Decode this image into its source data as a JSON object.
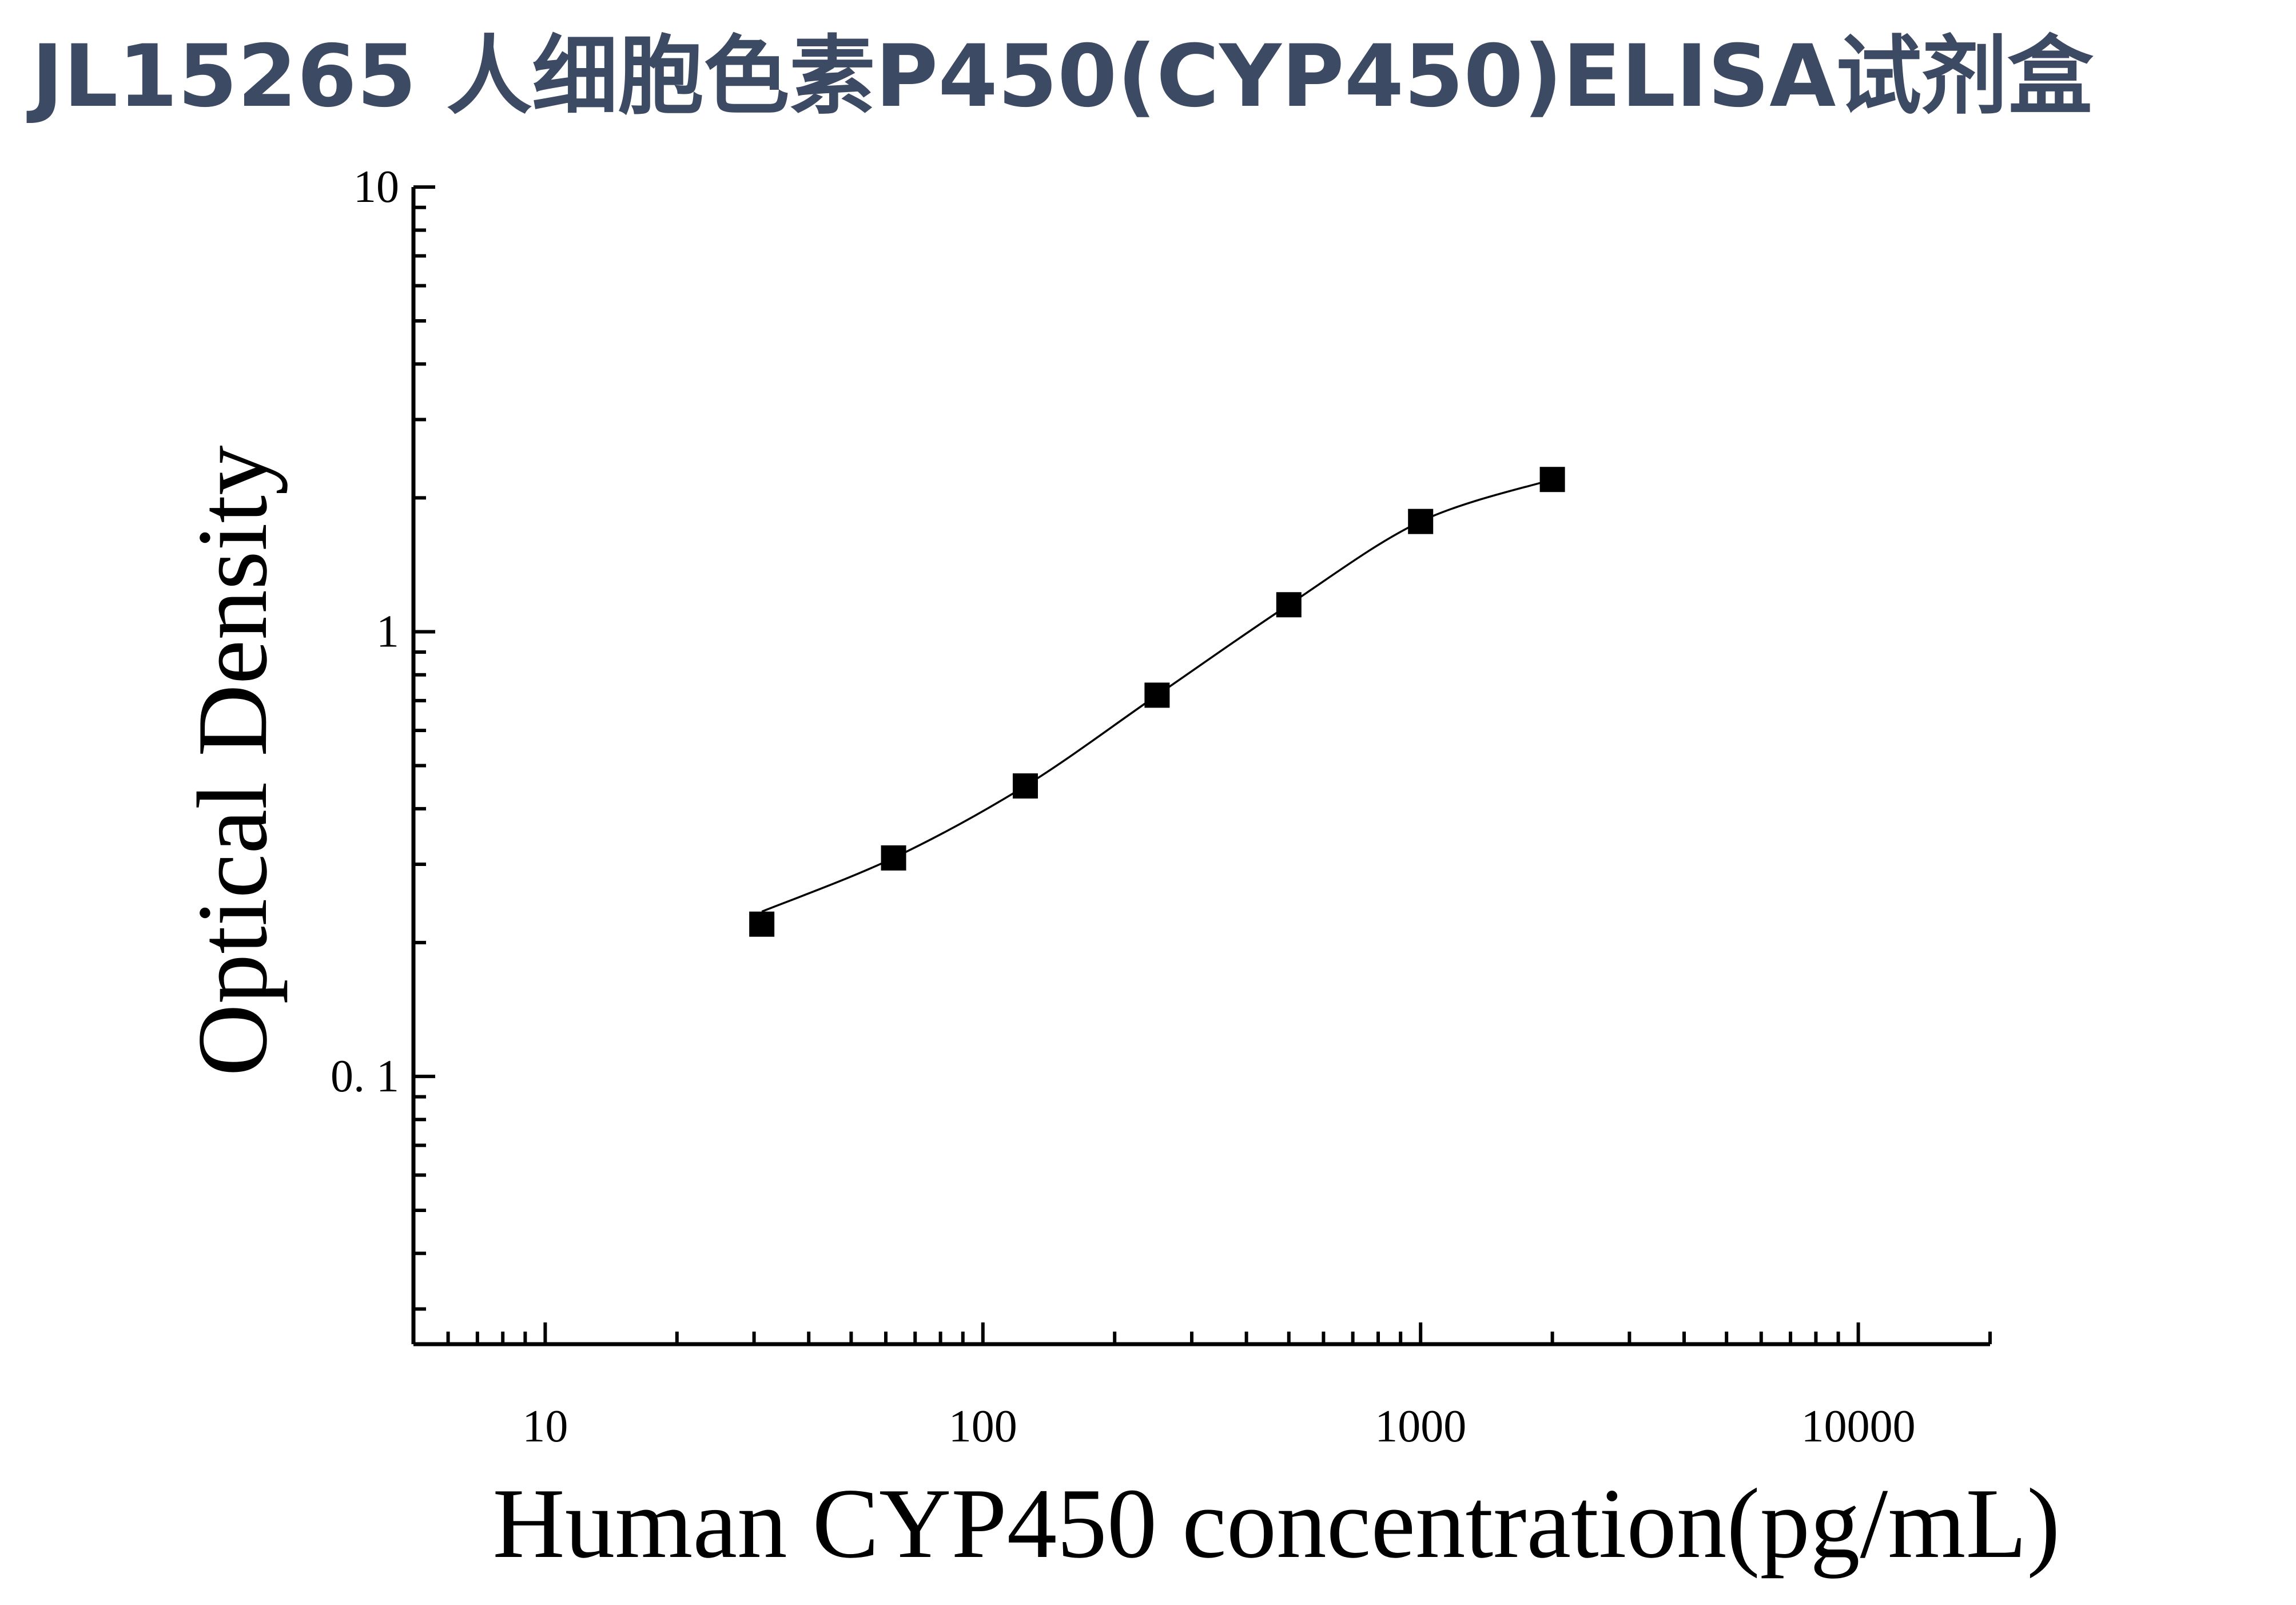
{
  "header": {
    "title": "JL15265 人细胞色素P450(CYP450)ELISA试剂盒"
  },
  "colors": {
    "title": "#3d4a63",
    "axis": "#000000",
    "marker": "#000000",
    "curve": "#000000"
  },
  "chart_data": {
    "type": "scatter",
    "xlabel": "Human CYP450 concentration(pg/mL)",
    "ylabel": "Optical Density",
    "x_scale": "log",
    "y_scale": "log",
    "xlim": [
      5,
      20000
    ],
    "ylim": [
      0.025,
      10
    ],
    "x_tick_labels": [
      "10",
      "100",
      "1000",
      "10000"
    ],
    "y_tick_labels": [
      "0. 1",
      "1",
      "10"
    ],
    "grid": false,
    "series": [
      {
        "marker": "square",
        "x": [
          31.25,
          62.5,
          125,
          250,
          500,
          1000,
          2000
        ],
        "y": [
          0.22,
          0.31,
          0.45,
          0.72,
          1.15,
          1.77,
          2.2
        ]
      }
    ],
    "fit_curve": {
      "type": "4PL",
      "x_range": [
        31.25,
        2000
      ]
    }
  }
}
